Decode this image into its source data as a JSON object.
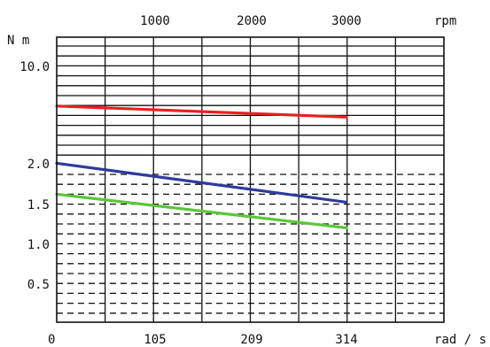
{
  "chart_data": {
    "type": "line",
    "top_axis": {
      "unit": "rpm",
      "ticks": [
        "1000",
        "2000",
        "3000"
      ],
      "tick_values": [
        1000,
        2000,
        3000
      ]
    },
    "bottom_axis": {
      "unit": "rad / s",
      "ticks": [
        "0",
        "105",
        "209",
        "314"
      ],
      "tick_values": [
        0,
        105,
        209,
        314
      ],
      "range": [
        0,
        422
      ]
    },
    "y_axis": {
      "unit": "N m",
      "ticks": [
        "10.0",
        "2.0",
        "1.5",
        "1.0",
        "0.5"
      ],
      "tick_values": [
        10.0,
        2.0,
        1.5,
        1.0,
        0.5
      ]
    },
    "grid": true,
    "series": [
      {
        "color": "#e8211d",
        "x": [
          0,
          314
        ],
        "y": [
          6.7,
          5.8
        ]
      },
      {
        "color": "#2e3a9b",
        "x": [
          0,
          314
        ],
        "y": [
          2.04,
          1.52
        ]
      },
      {
        "color": "#5cc63a",
        "x": [
          0,
          314
        ],
        "y": [
          1.62,
          1.2
        ]
      }
    ]
  }
}
